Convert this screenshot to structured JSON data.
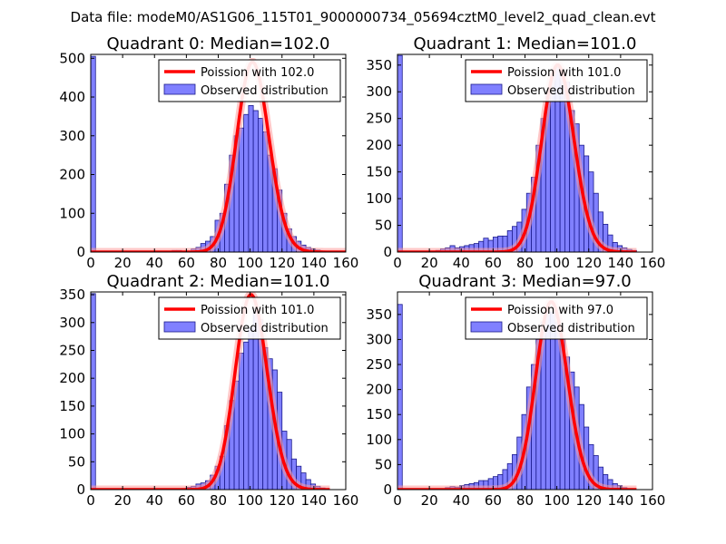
{
  "figure_title": "Data file: modeM0/AS1G06_115T01_9000000734_05694cztM0_level2_quad_clean.evt",
  "colors": {
    "bar_fill": "#8080ff",
    "bar_edge": "#1a1a8c",
    "curve": "#ff0000",
    "curve_glow": "#ff9999"
  },
  "chart_data": [
    {
      "type": "bar",
      "title": "Quadrant 0: Median=102.0",
      "xlim": [
        0,
        160
      ],
      "ylim": [
        0,
        510
      ],
      "xticks": [
        0,
        20,
        40,
        60,
        80,
        100,
        120,
        140,
        160
      ],
      "yticks": [
        0,
        100,
        200,
        300,
        400,
        500
      ],
      "legend": {
        "curve_label": "Poission with 102.0",
        "bar_label": "Observed distribution",
        "position": "top-right"
      },
      "bin_width": 3,
      "bins": [
        [
          0,
          505
        ],
        [
          30,
          2
        ],
        [
          39,
          2
        ],
        [
          51,
          4
        ],
        [
          54,
          4
        ],
        [
          60,
          2
        ],
        [
          63,
          8
        ],
        [
          66,
          12
        ],
        [
          69,
          22
        ],
        [
          72,
          28
        ],
        [
          75,
          40
        ],
        [
          78,
          82
        ],
        [
          81,
          100
        ],
        [
          84,
          175
        ],
        [
          87,
          250
        ],
        [
          90,
          300
        ],
        [
          93,
          320
        ],
        [
          96,
          355
        ],
        [
          99,
          378
        ],
        [
          102,
          365
        ],
        [
          105,
          345
        ],
        [
          108,
          310
        ],
        [
          111,
          250
        ],
        [
          114,
          215
        ],
        [
          117,
          160
        ],
        [
          120,
          100
        ],
        [
          123,
          60
        ],
        [
          126,
          40
        ],
        [
          129,
          28
        ],
        [
          132,
          18
        ],
        [
          135,
          12
        ],
        [
          138,
          8
        ],
        [
          141,
          5
        ],
        [
          144,
          3
        ],
        [
          147,
          2
        ]
      ],
      "poisson": {
        "mean": 102.0,
        "x": [
          0,
          160
        ],
        "peak": 490
      }
    },
    {
      "type": "bar",
      "title": "Quadrant 1: Median=101.0",
      "xlim": [
        0,
        160
      ],
      "ylim": [
        0,
        370
      ],
      "xticks": [
        0,
        20,
        40,
        60,
        80,
        100,
        120,
        140,
        160
      ],
      "yticks": [
        0,
        50,
        100,
        150,
        200,
        250,
        300,
        350
      ],
      "legend": {
        "curve_label": "Poission with 101.0",
        "bar_label": "Observed distribution",
        "position": "top-right"
      },
      "bin_width": 3,
      "bins": [
        [
          0,
          368
        ],
        [
          21,
          2
        ],
        [
          24,
          3
        ],
        [
          27,
          6
        ],
        [
          30,
          8
        ],
        [
          33,
          12
        ],
        [
          36,
          8
        ],
        [
          39,
          10
        ],
        [
          42,
          12
        ],
        [
          45,
          14
        ],
        [
          48,
          16
        ],
        [
          51,
          20
        ],
        [
          54,
          26
        ],
        [
          57,
          22
        ],
        [
          60,
          28
        ],
        [
          63,
          30
        ],
        [
          66,
          30
        ],
        [
          69,
          40
        ],
        [
          72,
          48
        ],
        [
          75,
          56
        ],
        [
          78,
          80
        ],
        [
          81,
          110
        ],
        [
          84,
          140
        ],
        [
          87,
          200
        ],
        [
          90,
          250
        ],
        [
          93,
          300
        ],
        [
          96,
          330
        ],
        [
          99,
          345
        ],
        [
          102,
          335
        ],
        [
          105,
          318
        ],
        [
          108,
          265
        ],
        [
          111,
          240
        ],
        [
          114,
          200
        ],
        [
          117,
          180
        ],
        [
          120,
          150
        ],
        [
          123,
          110
        ],
        [
          126,
          75
        ],
        [
          129,
          52
        ],
        [
          132,
          32
        ],
        [
          135,
          18
        ],
        [
          138,
          12
        ],
        [
          141,
          8
        ],
        [
          144,
          5
        ],
        [
          147,
          3
        ]
      ],
      "poisson": {
        "mean": 101.0,
        "x": [
          0,
          150
        ],
        "peak": 350
      }
    },
    {
      "type": "bar",
      "title": "Quadrant 2: Median=101.0",
      "xlim": [
        0,
        160
      ],
      "ylim": [
        0,
        355
      ],
      "xticks": [
        0,
        20,
        40,
        60,
        80,
        100,
        120,
        140,
        160
      ],
      "yticks": [
        0,
        50,
        100,
        150,
        200,
        250,
        300,
        350
      ],
      "legend": {
        "curve_label": "Poission with 101.0",
        "bar_label": "Observed distribution",
        "position": "top-right"
      },
      "bin_width": 3,
      "bins": [
        [
          0,
          352
        ],
        [
          57,
          2
        ],
        [
          60,
          4
        ],
        [
          63,
          6
        ],
        [
          66,
          10
        ],
        [
          69,
          12
        ],
        [
          72,
          16
        ],
        [
          75,
          26
        ],
        [
          78,
          42
        ],
        [
          81,
          60
        ],
        [
          84,
          115
        ],
        [
          87,
          160
        ],
        [
          90,
          195
        ],
        [
          93,
          245
        ],
        [
          96,
          265
        ],
        [
          99,
          290
        ],
        [
          102,
          325
        ],
        [
          105,
          305
        ],
        [
          108,
          255
        ],
        [
          111,
          235
        ],
        [
          114,
          215
        ],
        [
          117,
          175
        ],
        [
          120,
          105
        ],
        [
          123,
          90
        ],
        [
          126,
          55
        ],
        [
          129,
          42
        ],
        [
          132,
          30
        ],
        [
          135,
          18
        ],
        [
          138,
          10
        ],
        [
          141,
          6
        ],
        [
          144,
          3
        ]
      ],
      "poisson": {
        "mean": 101.0,
        "x": [
          0,
          150
        ],
        "peak": 350
      }
    },
    {
      "type": "bar",
      "title": "Quadrant 3: Median=97.0",
      "xlim": [
        0,
        160
      ],
      "ylim": [
        0,
        395
      ],
      "xticks": [
        0,
        20,
        40,
        60,
        80,
        100,
        120,
        140,
        160
      ],
      "yticks": [
        0,
        50,
        100,
        150,
        200,
        250,
        300,
        350
      ],
      "legend": {
        "curve_label": "Poission with 97.0",
        "bar_label": "Observed distribution",
        "position": "top-right"
      },
      "bin_width": 3,
      "bins": [
        [
          0,
          370
        ],
        [
          27,
          2
        ],
        [
          30,
          4
        ],
        [
          33,
          6
        ],
        [
          36,
          5
        ],
        [
          39,
          8
        ],
        [
          42,
          10
        ],
        [
          45,
          12
        ],
        [
          48,
          14
        ],
        [
          51,
          18
        ],
        [
          54,
          18
        ],
        [
          57,
          22
        ],
        [
          60,
          26
        ],
        [
          63,
          30
        ],
        [
          66,
          40
        ],
        [
          69,
          52
        ],
        [
          72,
          70
        ],
        [
          75,
          105
        ],
        [
          78,
          150
        ],
        [
          81,
          205
        ],
        [
          84,
          250
        ],
        [
          87,
          300
        ],
        [
          90,
          335
        ],
        [
          93,
          355
        ],
        [
          96,
          355
        ],
        [
          99,
          335
        ],
        [
          102,
          300
        ],
        [
          105,
          265
        ],
        [
          108,
          235
        ],
        [
          111,
          205
        ],
        [
          114,
          170
        ],
        [
          117,
          125
        ],
        [
          120,
          90
        ],
        [
          123,
          68
        ],
        [
          126,
          45
        ],
        [
          129,
          30
        ],
        [
          132,
          20
        ],
        [
          135,
          12
        ],
        [
          138,
          8
        ],
        [
          141,
          4
        ],
        [
          144,
          2
        ]
      ],
      "poisson": {
        "mean": 97.0,
        "x": [
          0,
          150
        ],
        "peak": 375
      }
    }
  ]
}
